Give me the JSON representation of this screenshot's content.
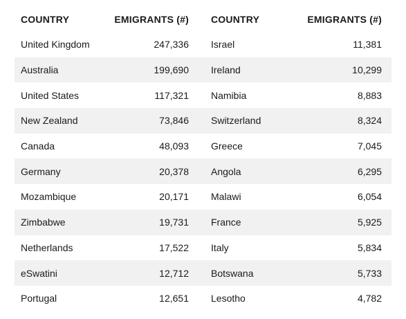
{
  "table": {
    "headers": [
      "COUNTRY",
      "EMIGRANTS (#)",
      "COUNTRY",
      "EMIGRANTS (#)"
    ],
    "rows": [
      [
        "United Kingdom",
        "247,336",
        "Israel",
        "11,381"
      ],
      [
        "Australia",
        "199,690",
        "Ireland",
        "10,299"
      ],
      [
        "United States",
        "117,321",
        "Namibia",
        "8,883"
      ],
      [
        "New Zealand",
        "73,846",
        "Switzerland",
        "8,324"
      ],
      [
        "Canada",
        "48,093",
        "Greece",
        "7,045"
      ],
      [
        "Germany",
        "20,378",
        "Angola",
        "6,295"
      ],
      [
        "Mozambique",
        "20,171",
        "Malawi",
        "6,054"
      ],
      [
        "Zimbabwe",
        "19,731",
        "France",
        "5,925"
      ],
      [
        "Netherlands",
        "17,522",
        "Italy",
        "5,834"
      ],
      [
        "eSwatini",
        "12,712",
        "Botswana",
        "5,733"
      ],
      [
        "Portugal",
        "12,651",
        "Lesotho",
        "4,782"
      ]
    ],
    "shade_color": "#f1f1f1"
  }
}
